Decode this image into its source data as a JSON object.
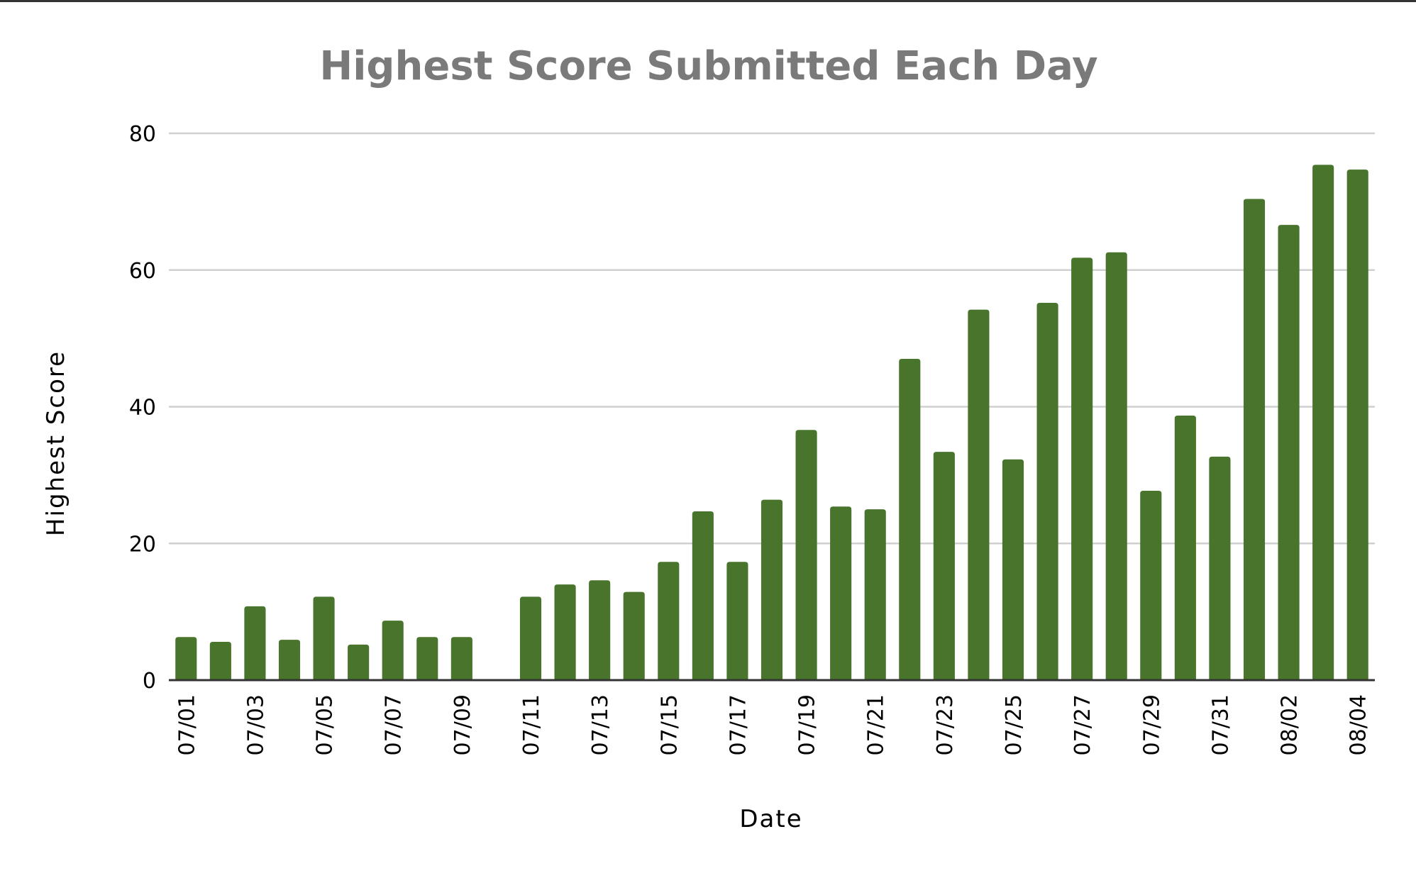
{
  "chart_data": {
    "type": "bar",
    "title": "Highest Score Submitted Each Day",
    "xlabel": "Date",
    "ylabel": "Highest Score",
    "ylim": [
      0,
      80
    ],
    "yticks": [
      0,
      20,
      40,
      60,
      80
    ],
    "grid": true,
    "bar_color": "#48742C",
    "title_color": "#7a7a7a",
    "categories": [
      "07/01",
      "07/02",
      "07/03",
      "07/04",
      "07/05",
      "07/06",
      "07/07",
      "07/08",
      "07/09",
      "07/10",
      "07/11",
      "07/12",
      "07/13",
      "07/14",
      "07/15",
      "07/16",
      "07/17",
      "07/18",
      "07/19",
      "07/20",
      "07/21",
      "07/22",
      "07/23",
      "07/24",
      "07/25",
      "07/26",
      "07/27",
      "07/28",
      "07/29",
      "07/30",
      "07/31",
      "08/01",
      "08/02",
      "08/03",
      "08/04"
    ],
    "tick_labels": [
      "07/01",
      "",
      "07/03",
      "",
      "07/05",
      "",
      "07/07",
      "",
      "07/09",
      "",
      "07/11",
      "",
      "07/13",
      "",
      "07/15",
      "",
      "07/17",
      "",
      "07/19",
      "",
      "07/21",
      "",
      "07/23",
      "",
      "07/25",
      "",
      "07/27",
      "",
      "07/29",
      "",
      "07/31",
      "",
      "08/02",
      "",
      "08/04"
    ],
    "values": [
      6.3,
      5.6,
      10.8,
      5.9,
      12.2,
      5.2,
      8.7,
      6.3,
      6.3,
      null,
      12.2,
      14.0,
      14.6,
      12.9,
      17.3,
      24.7,
      17.3,
      26.4,
      36.6,
      25.4,
      25.0,
      47.0,
      33.4,
      54.2,
      32.3,
      55.2,
      61.8,
      62.6,
      27.7,
      38.7,
      32.7,
      70.4,
      66.6,
      75.4,
      74.7
    ]
  }
}
